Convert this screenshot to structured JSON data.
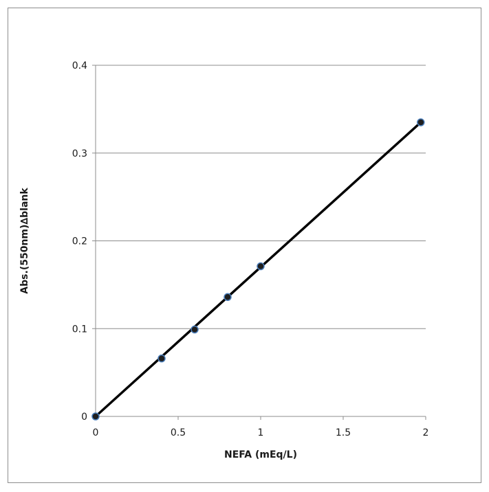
{
  "chart_data": {
    "type": "scatter",
    "title": "",
    "xlabel": "NEFA (mEq/L)",
    "ylabel": "Abs.(550nm)∆blank",
    "xlim": [
      0,
      2
    ],
    "ylim": [
      0,
      0.4
    ],
    "x_ticks": [
      "0",
      "0.5",
      "1",
      "1.5",
      "2"
    ],
    "y_ticks": [
      "0",
      "0.1",
      "0.2",
      "0.3",
      "0.4"
    ],
    "grid": "horizontal",
    "legend": "none",
    "series": [
      {
        "x": [
          0,
          0.4,
          0.6,
          0.8,
          1.0,
          1.97
        ],
        "y": [
          0,
          0.066,
          0.099,
          0.136,
          0.171,
          0.335
        ],
        "marker_color": "#1f1f1f",
        "marker_edge_color": "#4a7ebb"
      }
    ],
    "trendline": {
      "type": "linear",
      "x": [
        0,
        1.97
      ],
      "y": [
        0,
        0.335
      ],
      "color": "#000000"
    }
  }
}
